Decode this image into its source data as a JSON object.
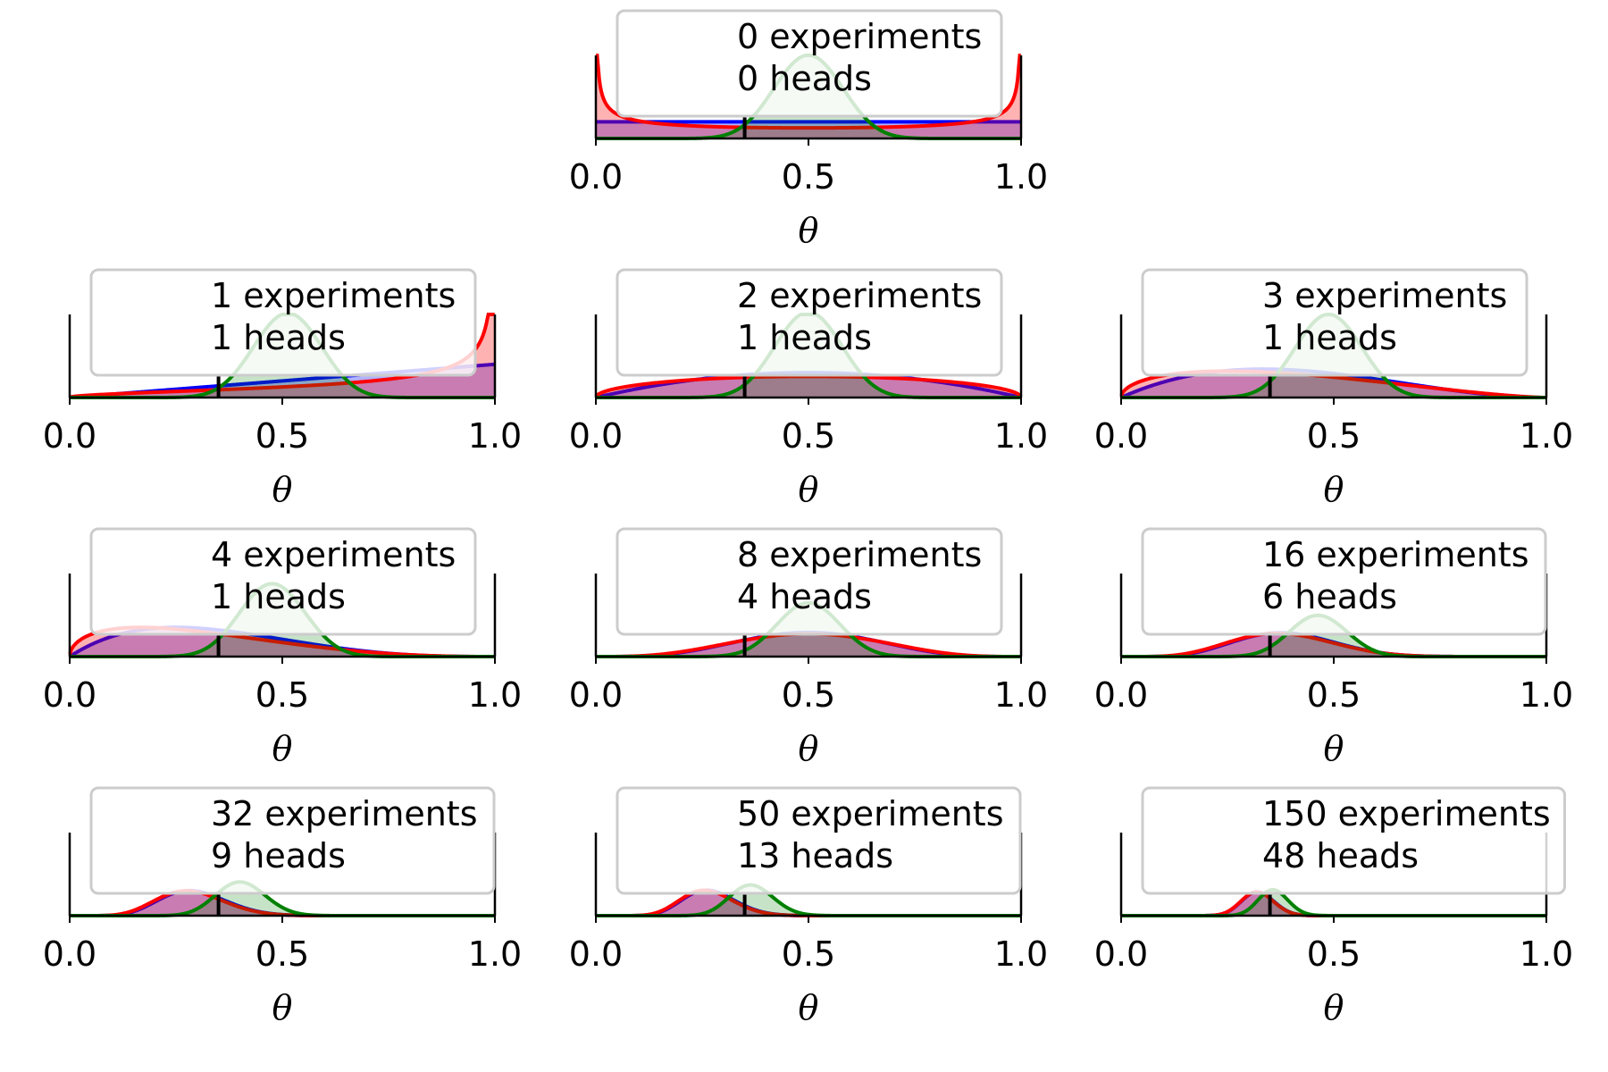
{
  "chart_data": {
    "type": "area",
    "xlabel": "θ",
    "xlim": [
      0,
      1
    ],
    "xticks": [
      "0.0",
      "0.5",
      "1.0"
    ],
    "true_theta": 0.35,
    "series": [
      {
        "name": "",
        "color": "#0000ff",
        "prior": "Beta(1,1)"
      },
      {
        "name": "",
        "color": "#ff0000",
        "prior": "Beta(0.5,0.5)"
      },
      {
        "name": "",
        "color": "#008000",
        "prior": "Beta(20,20)"
      }
    ],
    "panels": [
      {
        "experiments": 0,
        "heads": 0,
        "line1": "0 experiments",
        "line2": "0 heads"
      },
      {
        "experiments": 1,
        "heads": 1,
        "line1": "1 experiments",
        "line2": "1 heads"
      },
      {
        "experiments": 2,
        "heads": 1,
        "line1": "2 experiments",
        "line2": "1 heads"
      },
      {
        "experiments": 3,
        "heads": 1,
        "line1": "3 experiments",
        "line2": "1 heads"
      },
      {
        "experiments": 4,
        "heads": 1,
        "line1": "4 experiments",
        "line2": "1 heads"
      },
      {
        "experiments": 8,
        "heads": 4,
        "line1": "8 experiments",
        "line2": "4 heads"
      },
      {
        "experiments": 16,
        "heads": 6,
        "line1": "16 experiments",
        "line2": "6 heads"
      },
      {
        "experiments": 32,
        "heads": 9,
        "line1": "32 experiments",
        "line2": "9 heads"
      },
      {
        "experiments": 50,
        "heads": 13,
        "line1": "50 experiments",
        "line2": "13 heads"
      },
      {
        "experiments": 150,
        "heads": 48,
        "line1": "150 experiments",
        "line2": "48 heads"
      }
    ]
  }
}
